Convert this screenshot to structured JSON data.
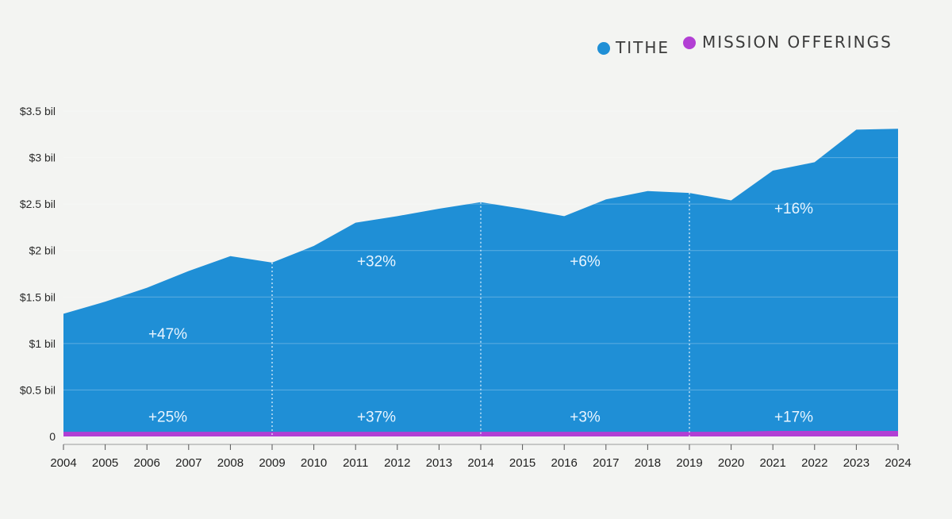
{
  "chart_data": {
    "type": "area",
    "title": "",
    "xlabel": "",
    "ylabel": "",
    "x": [
      "2004",
      "2005",
      "2006",
      "2007",
      "2008",
      "2009",
      "2010",
      "2011",
      "2012",
      "2013",
      "2014",
      "2015",
      "2016",
      "2017",
      "2018",
      "2019",
      "2020",
      "2021",
      "2022",
      "2023",
      "2024"
    ],
    "ylim": [
      0,
      3.5
    ],
    "yticks": [
      "0",
      "$0.5 bil",
      "$1 bil",
      "$1.5 bil",
      "$2 bil",
      "$2.5 bil",
      "$3 bil",
      "$3.5 bil"
    ],
    "series": [
      {
        "name": "TITHE",
        "color": "#1f8fd6",
        "values": [
          1.32,
          1.45,
          1.6,
          1.78,
          1.94,
          1.87,
          2.05,
          2.3,
          2.37,
          2.45,
          2.52,
          2.45,
          2.37,
          2.55,
          2.64,
          2.62,
          2.54,
          2.86,
          2.95,
          3.3,
          3.31
        ]
      },
      {
        "name": "MISSION OFFERINGS",
        "color": "#b23fd4",
        "values": [
          0.05,
          0.05,
          0.05,
          0.05,
          0.05,
          0.05,
          0.05,
          0.05,
          0.05,
          0.05,
          0.05,
          0.05,
          0.05,
          0.05,
          0.05,
          0.05,
          0.05,
          0.06,
          0.06,
          0.06,
          0.06
        ]
      }
    ],
    "dividers": [
      "2009",
      "2014",
      "2019"
    ],
    "annotations": {
      "tithe_growth": [
        "+47%",
        "+32%",
        "+6%",
        "+16%"
      ],
      "mission_growth": [
        "+25%",
        "+37%",
        "+3%",
        "+17%"
      ]
    },
    "grid": true,
    "legend": "top-right"
  }
}
